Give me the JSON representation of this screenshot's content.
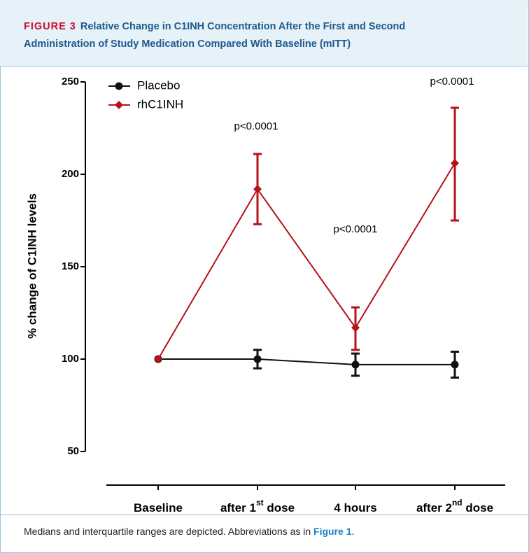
{
  "figure_label": "FIGURE 3",
  "caption": {
    "text": "Medians and interquartile ranges are depicted. Abbreviations as in ",
    "link": "Figure 1",
    "end": "."
  },
  "chart_data": {
    "type": "line",
    "title": "Relative Change in C1INH Concentration After the First and Second Administration of Study Medication Compared With Baseline (mITT)",
    "y_label": "% change of C1INH levels",
    "categories": [
      [
        "Baseline"
      ],
      [
        "after 1",
        "st",
        " dose"
      ],
      [
        "4 hours"
      ],
      [
        "after 2",
        "nd",
        " dose"
      ]
    ],
    "series": [
      {
        "name": "Placebo",
        "color": "#111111",
        "marker": "circle",
        "values": [
          100,
          100,
          97,
          97
        ],
        "lower": [
          null,
          95,
          91,
          90
        ],
        "upper": [
          null,
          105,
          103,
          104
        ]
      },
      {
        "name": "rhC1INH",
        "color": "#b5121b",
        "marker": "diamond",
        "values": [
          100,
          192,
          117,
          206
        ],
        "lower": [
          null,
          173,
          105,
          175
        ],
        "upper": [
          null,
          211,
          128,
          236
        ]
      }
    ],
    "annotations": [
      "p<0.0001",
      "p<0.0001",
      "p<0.0001"
    ],
    "ylim": [
      50,
      250
    ],
    "yticks": [
      50,
      100,
      150,
      200,
      250
    ],
    "legend": "upper left"
  }
}
